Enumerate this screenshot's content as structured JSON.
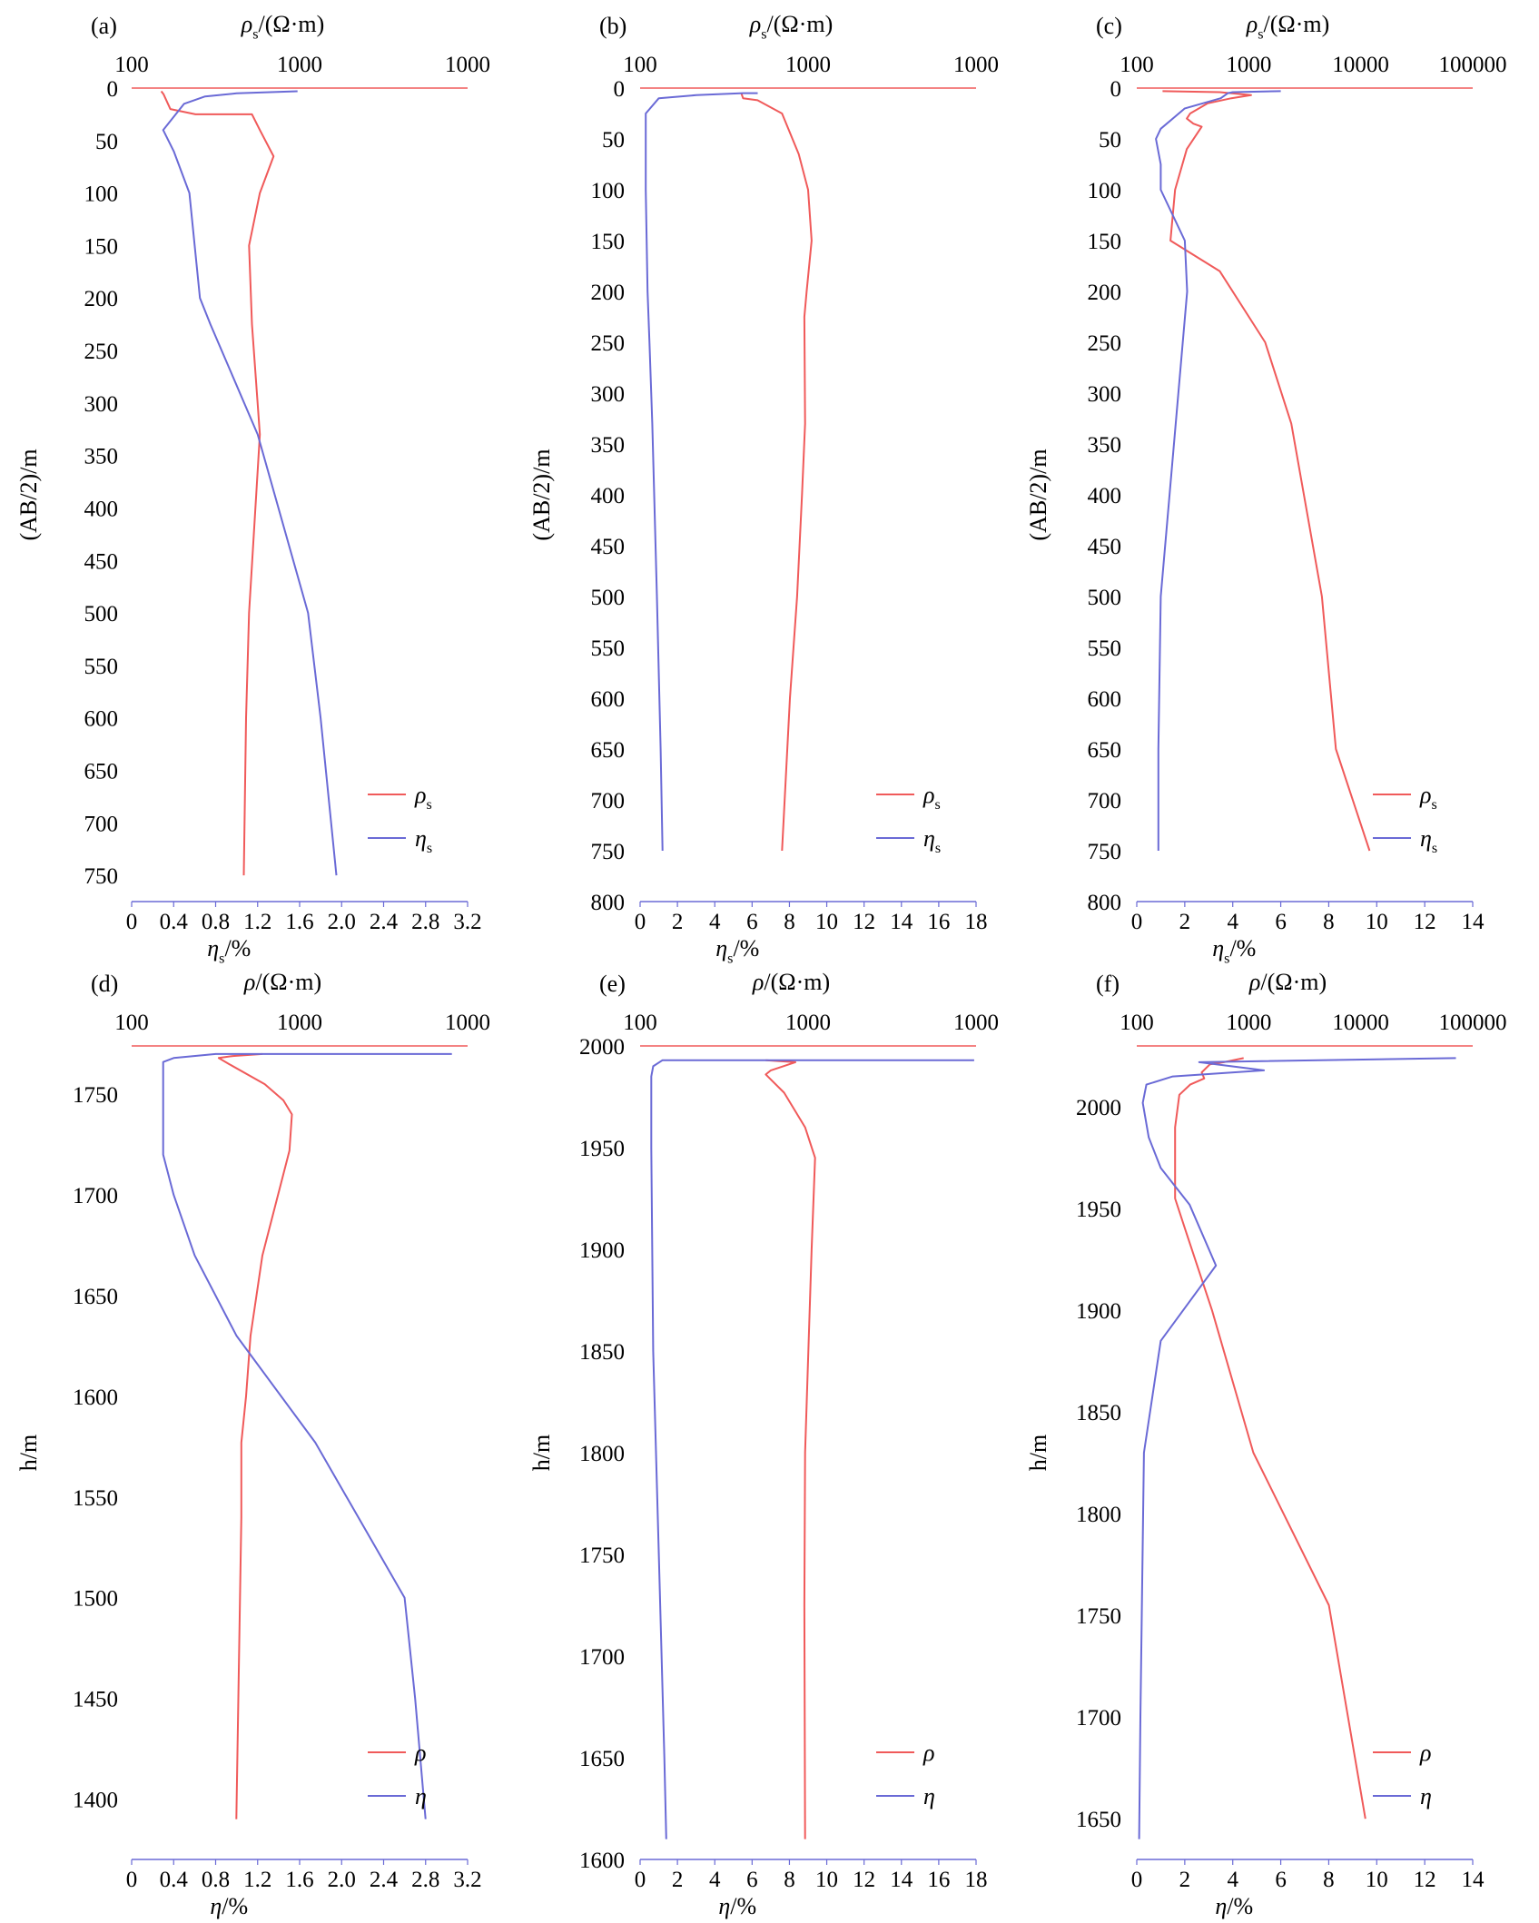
{
  "colors": {
    "rho": "#f05a5a",
    "eta": "#6a6ad6",
    "text": "#000000"
  },
  "chart_data": [
    {
      "type": "line",
      "panel_label": "(a)",
      "top_axis": {
        "label_symbol": "ρ",
        "label_sub": "s",
        "label_rest": "/(Ω·m)",
        "scale": "log",
        "range": [
          100,
          10000
        ],
        "tick_labels": [
          "100",
          "1000",
          "1000"
        ]
      },
      "bottom_axis": {
        "label_symbol": "η",
        "label_sub": "s",
        "label_rest": "/%",
        "range": [
          0,
          3.2
        ],
        "tick_labels": [
          "0",
          "0.4",
          "0.8",
          "1.2",
          "1.6",
          "2.0",
          "2.4",
          "2.8",
          "3.2"
        ]
      },
      "y_axis": {
        "label": "(AB/2)/m",
        "range": [
          0,
          775
        ],
        "inverted": true,
        "tick_values": [
          0,
          50,
          100,
          150,
          200,
          250,
          300,
          350,
          400,
          450,
          500,
          550,
          600,
          650,
          700,
          750
        ]
      },
      "legend": {
        "position": "bottom-right",
        "entries": [
          {
            "symbol": "ρ",
            "sub": "s"
          },
          {
            "symbol": "η",
            "sub": "s"
          }
        ]
      },
      "series": [
        {
          "key": "rho",
          "axis": "top",
          "x": [
            150,
            155,
            170,
            240,
            520,
            580,
            700,
            580,
            500,
            520,
            580,
            500,
            480,
            465
          ],
          "y": [
            3,
            6,
            20,
            25,
            25,
            40,
            65,
            100,
            150,
            225,
            330,
            500,
            600,
            750
          ]
        },
        {
          "key": "eta",
          "axis": "bottom",
          "x": [
            1.58,
            1.0,
            0.7,
            0.5,
            0.3,
            0.4,
            0.55,
            0.6,
            0.65,
            0.75,
            1.2,
            1.68,
            1.8,
            1.95
          ],
          "y": [
            3,
            5,
            8,
            15,
            40,
            60,
            100,
            150,
            200,
            225,
            330,
            500,
            600,
            750
          ]
        }
      ]
    },
    {
      "type": "line",
      "panel_label": "(b)",
      "top_axis": {
        "label_symbol": "ρ",
        "label_sub": "s",
        "label_rest": "/(Ω·m)",
        "scale": "log",
        "range": [
          100,
          10000
        ],
        "tick_labels": [
          "100",
          "1000",
          "1000"
        ]
      },
      "bottom_axis": {
        "label_symbol": "η",
        "label_sub": "s",
        "label_rest": "/%",
        "range": [
          0,
          18
        ],
        "tick_labels": [
          "0",
          "2",
          "4",
          "6",
          "8",
          "10",
          "12",
          "14",
          "16",
          "18"
        ]
      },
      "y_axis": {
        "label": "(AB/2)/m",
        "range": [
          0,
          800
        ],
        "inverted": true,
        "tick_values": [
          0,
          50,
          100,
          150,
          200,
          250,
          300,
          350,
          400,
          450,
          500,
          550,
          600,
          650,
          700,
          750,
          800
        ]
      },
      "legend": {
        "position": "bottom-right",
        "entries": [
          {
            "symbol": "ρ",
            "sub": "s"
          },
          {
            "symbol": "η",
            "sub": "s"
          }
        ]
      },
      "series": [
        {
          "key": "rho",
          "axis": "top",
          "x": [
            400,
            410,
            500,
            700,
            880,
            1000,
            1050,
            980,
            950,
            960,
            920,
            860,
            780,
            700
          ],
          "y": [
            5,
            10,
            12,
            25,
            65,
            100,
            150,
            200,
            225,
            330,
            400,
            500,
            600,
            750
          ]
        },
        {
          "key": "eta",
          "axis": "bottom",
          "x": [
            6.3,
            5.5,
            3.0,
            1.0,
            0.3,
            0.3,
            0.35,
            0.4,
            0.5,
            0.65,
            0.9,
            1.1,
            1.2
          ],
          "y": [
            5,
            5,
            7,
            10,
            25,
            100,
            150,
            200,
            250,
            330,
            500,
            650,
            750
          ]
        }
      ]
    },
    {
      "type": "line",
      "panel_label": "(c)",
      "top_axis": {
        "label_symbol": "ρ",
        "label_sub": "s",
        "label_rest": "/(Ω·m)",
        "scale": "log",
        "range": [
          100,
          100000
        ],
        "tick_labels": [
          "100",
          "1000",
          "10000",
          "100000"
        ]
      },
      "bottom_axis": {
        "label_symbol": "η",
        "label_sub": "s",
        "label_rest": "/%",
        "range": [
          0,
          14
        ],
        "tick_labels": [
          "0",
          "2",
          "4",
          "6",
          "8",
          "10",
          "12",
          "14"
        ]
      },
      "y_axis": {
        "label": "(AB/2)/m",
        "range": [
          0,
          800
        ],
        "inverted": true,
        "tick_values": [
          0,
          50,
          100,
          150,
          200,
          250,
          300,
          350,
          400,
          450,
          500,
          550,
          600,
          650,
          700,
          750,
          800
        ]
      },
      "legend": {
        "position": "bottom-right",
        "entries": [
          {
            "symbol": "ρ",
            "sub": "s"
          },
          {
            "symbol": "η",
            "sub": "s"
          }
        ]
      },
      "series": [
        {
          "key": "rho",
          "axis": "top",
          "x": [
            170,
            550,
            1050,
            700,
            430,
            300,
            280,
            320,
            380,
            280,
            220,
            200,
            550,
            1400,
            2400,
            4500,
            6000,
            12000
          ],
          "y": [
            3,
            4,
            7,
            10,
            15,
            25,
            30,
            35,
            38,
            60,
            100,
            150,
            180,
            250,
            330,
            500,
            650,
            750
          ]
        },
        {
          "key": "eta",
          "axis": "bottom",
          "x": [
            6.0,
            4.0,
            3.8,
            3.5,
            2.0,
            1.0,
            0.8,
            1.0,
            1.0,
            2.0,
            2.1,
            1.0,
            0.9,
            0.9
          ],
          "y": [
            3,
            4,
            5,
            10,
            20,
            40,
            50,
            75,
            100,
            150,
            200,
            500,
            650,
            750
          ]
        }
      ]
    },
    {
      "type": "line",
      "panel_label": "(d)",
      "top_axis": {
        "label_symbol": "ρ",
        "label_sub": "",
        "label_rest": "/(Ω·m)",
        "scale": "log",
        "range": [
          100,
          10000
        ],
        "tick_labels": [
          "100",
          "1000",
          "1000"
        ]
      },
      "bottom_axis": {
        "label_symbol": "η",
        "label_sub": "",
        "label_rest": "/%",
        "range": [
          0,
          3.2
        ],
        "tick_labels": [
          "0",
          "0.4",
          "0.8",
          "1.2",
          "1.6",
          "2.0",
          "2.4",
          "2.8",
          "3.2"
        ]
      },
      "y_axis": {
        "label": "h/m",
        "range": [
          1370,
          1774
        ],
        "inverted": false,
        "tick_values": [
          1400,
          1450,
          1500,
          1550,
          1600,
          1650,
          1700,
          1750
        ]
      },
      "legend": {
        "position": "bottom-right",
        "entries": [
          {
            "symbol": "ρ",
            "sub": ""
          },
          {
            "symbol": "η",
            "sub": ""
          }
        ]
      },
      "series": [
        {
          "key": "rho",
          "axis": "top",
          "x": [
            600,
            400,
            330,
            380,
            620,
            800,
            900,
            870,
            600,
            510,
            480,
            450,
            450,
            420
          ],
          "y": [
            1770,
            1769,
            1768,
            1765,
            1755,
            1747,
            1740,
            1722,
            1670,
            1630,
            1600,
            1577,
            1540,
            1390
          ]
        },
        {
          "key": "eta",
          "axis": "bottom",
          "x": [
            3.05,
            0.8,
            0.4,
            0.3,
            0.3,
            0.4,
            0.6,
            1.0,
            1.75,
            2.6,
            2.7,
            2.8
          ],
          "y": [
            1770,
            1770,
            1768,
            1766,
            1720,
            1700,
            1670,
            1630,
            1577,
            1500,
            1450,
            1390
          ]
        }
      ]
    },
    {
      "type": "line",
      "panel_label": "(e)",
      "top_axis": {
        "label_symbol": "ρ",
        "label_sub": "",
        "label_rest": "/(Ω·m)",
        "scale": "log",
        "range": [
          100,
          10000
        ],
        "tick_labels": [
          "100",
          "1000",
          "1000"
        ]
      },
      "bottom_axis": {
        "label_symbol": "η",
        "label_sub": "",
        "label_rest": "/%",
        "range": [
          0,
          18
        ],
        "tick_labels": [
          "0",
          "2",
          "4",
          "6",
          "8",
          "10",
          "12",
          "14",
          "16",
          "18"
        ]
      },
      "y_axis": {
        "label": "h/m",
        "range": [
          1600,
          2000
        ],
        "inverted": false,
        "tick_values": [
          1600,
          1650,
          1700,
          1750,
          1800,
          1850,
          1900,
          1950,
          2000
        ]
      },
      "legend": {
        "position": "bottom-right",
        "entries": [
          {
            "symbol": "ρ",
            "sub": ""
          },
          {
            "symbol": "η",
            "sub": ""
          }
        ]
      },
      "series": [
        {
          "key": "rho",
          "axis": "top",
          "x": [
            560,
            840,
            600,
            560,
            720,
            960,
            1100,
            1050,
            960,
            950,
            960
          ],
          "y": [
            1993,
            1992,
            1988,
            1986,
            1977,
            1960,
            1945,
            1900,
            1800,
            1725,
            1610
          ]
        },
        {
          "key": "eta",
          "axis": "bottom",
          "x": [
            17.9,
            1.2,
            0.7,
            0.6,
            0.6,
            0.7,
            1.0,
            1.3,
            1.4
          ],
          "y": [
            1993,
            1993,
            1990,
            1985,
            1950,
            1850,
            1750,
            1650,
            1610
          ]
        }
      ]
    },
    {
      "type": "line",
      "panel_label": "(f)",
      "top_axis": {
        "label_symbol": "ρ",
        "label_sub": "",
        "label_rest": "/(Ω·m)",
        "scale": "log",
        "range": [
          100,
          100000
        ],
        "tick_labels": [
          "100",
          "1000",
          "10000",
          "100000"
        ]
      },
      "bottom_axis": {
        "label_symbol": "η",
        "label_sub": "",
        "label_rest": "/%",
        "range": [
          0,
          14
        ],
        "tick_labels": [
          "0",
          "2",
          "4",
          "6",
          "8",
          "10",
          "12",
          "14"
        ]
      },
      "y_axis": {
        "label": "h/m",
        "range": [
          1630,
          2030
        ],
        "inverted": false,
        "tick_values": [
          1650,
          1700,
          1750,
          1800,
          1850,
          1900,
          1950,
          2000
        ]
      },
      "legend": {
        "position": "bottom-right",
        "entries": [
          {
            "symbol": "ρ",
            "sub": ""
          },
          {
            "symbol": "η",
            "sub": ""
          }
        ]
      },
      "series": [
        {
          "key": "rho",
          "axis": "top",
          "x": [
            900,
            600,
            450,
            380,
            400,
            300,
            240,
            220,
            220,
            270,
            470,
            1100,
            5200,
            11000
          ],
          "y": [
            2024,
            2022,
            2021,
            2017,
            2014,
            2011,
            2006,
            1990,
            1955,
            1940,
            1900,
            1830,
            1755,
            1650
          ]
        },
        {
          "key": "eta",
          "axis": "bottom",
          "x": [
            13.3,
            2.6,
            5.3,
            1.5,
            0.4,
            0.25,
            0.5,
            1.0,
            2.2,
            3.3,
            1.0,
            0.3,
            0.15,
            0.1
          ],
          "y": [
            2024,
            2022,
            2018,
            2015,
            2011,
            2002,
            1985,
            1970,
            1952,
            1922,
            1885,
            1830,
            1700,
            1640
          ]
        }
      ]
    }
  ]
}
